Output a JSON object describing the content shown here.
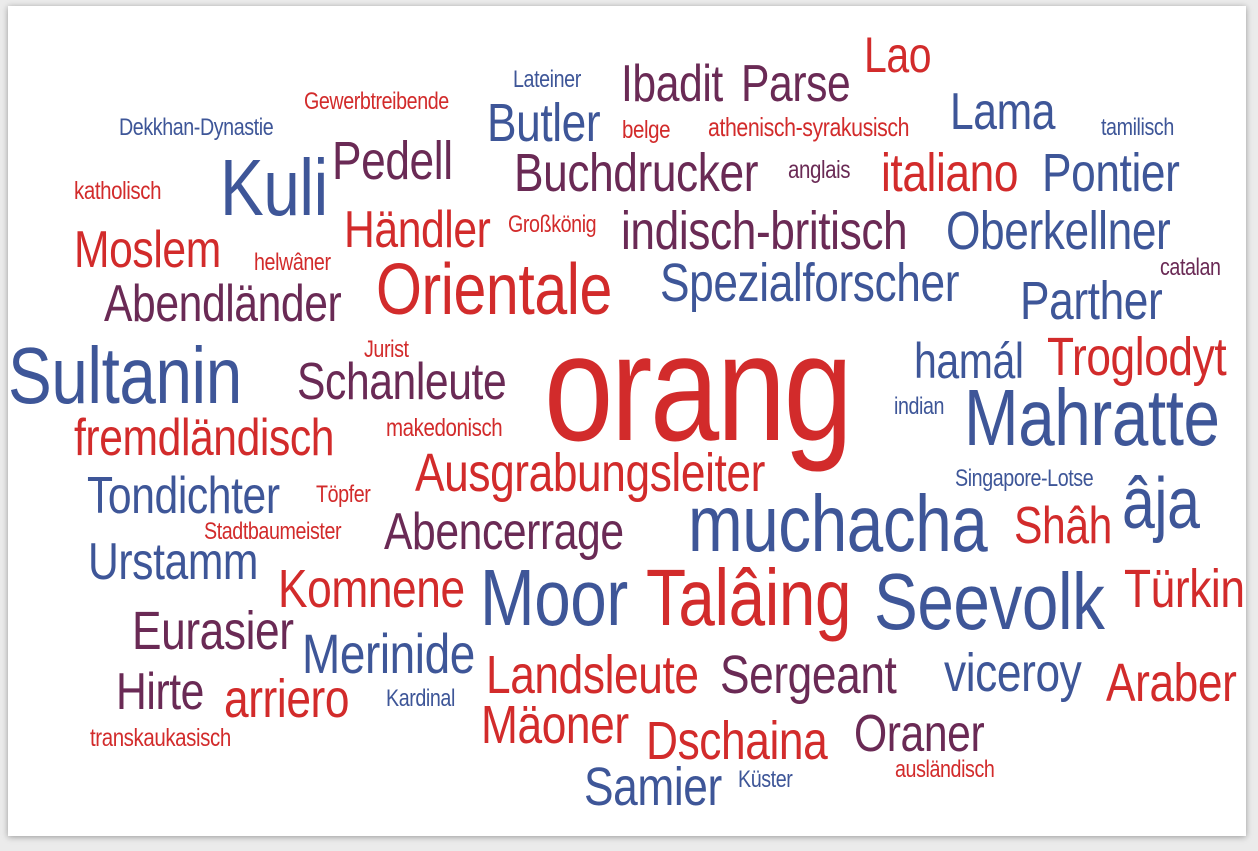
{
  "colors": {
    "red": "#d22b2b",
    "blue": "#3e5698",
    "purple": "#6a2a55",
    "background": "#ffffff"
  },
  "words": [
    {
      "id": "lao",
      "text": "Lao"
    },
    {
      "id": "lateiner",
      "text": "Lateiner"
    },
    {
      "id": "ibadit",
      "text": "Ibadit"
    },
    {
      "id": "parse",
      "text": "Parse"
    },
    {
      "id": "gewerbtreibende",
      "text": "Gewerbtreibende"
    },
    {
      "id": "lama",
      "text": "Lama"
    },
    {
      "id": "dekkhan",
      "text": "Dekkhan-Dynastie"
    },
    {
      "id": "butler",
      "text": "Butler"
    },
    {
      "id": "belge",
      "text": "belge"
    },
    {
      "id": "athenisch",
      "text": "athenisch-syrakusisch"
    },
    {
      "id": "tamilisch",
      "text": "tamilisch"
    },
    {
      "id": "pedell",
      "text": "Pedell"
    },
    {
      "id": "buchdrucker",
      "text": "Buchdrucker"
    },
    {
      "id": "anglais",
      "text": "anglais"
    },
    {
      "id": "italiano",
      "text": "italiano"
    },
    {
      "id": "pontier",
      "text": "Pontier"
    },
    {
      "id": "kuli",
      "text": "Kuli"
    },
    {
      "id": "katholisch",
      "text": "katholisch"
    },
    {
      "id": "haendler",
      "text": "Händler"
    },
    {
      "id": "grosskoenig",
      "text": "Großkönig"
    },
    {
      "id": "indisch",
      "text": "indisch-britisch"
    },
    {
      "id": "oberkellner",
      "text": "Oberkellner"
    },
    {
      "id": "moslem",
      "text": "Moslem"
    },
    {
      "id": "helwaner",
      "text": "helwâner"
    },
    {
      "id": "orientale",
      "text": "Orientale"
    },
    {
      "id": "spezialforscher",
      "text": "Spezialforscher"
    },
    {
      "id": "catalan",
      "text": "catalan"
    },
    {
      "id": "abendlaender",
      "text": "Abendländer"
    },
    {
      "id": "parther",
      "text": "Parther"
    },
    {
      "id": "sultanin",
      "text": "Sultanin"
    },
    {
      "id": "jurist",
      "text": "Jurist"
    },
    {
      "id": "schanleute",
      "text": "Schanleute"
    },
    {
      "id": "orang",
      "text": "orang"
    },
    {
      "id": "hamal",
      "text": "hamál"
    },
    {
      "id": "troglodyt",
      "text": "Troglodyt"
    },
    {
      "id": "indian",
      "text": "indian"
    },
    {
      "id": "mahratte",
      "text": "Mahratte"
    },
    {
      "id": "fremdlaendisch",
      "text": "fremdländisch"
    },
    {
      "id": "makedonisch",
      "text": "makedonisch"
    },
    {
      "id": "ausgrabungsleiter",
      "text": "Ausgrabungsleiter"
    },
    {
      "id": "singapore",
      "text": "Singapore-Lotse"
    },
    {
      "id": "tondichter",
      "text": "Tondichter"
    },
    {
      "id": "toepfer",
      "text": "Töpfer"
    },
    {
      "id": "aja",
      "text": "âja"
    },
    {
      "id": "stadtbaumeister",
      "text": "Stadtbaumeister"
    },
    {
      "id": "abencerrage",
      "text": "Abencerrage"
    },
    {
      "id": "muchacha",
      "text": "muchacha"
    },
    {
      "id": "shah",
      "text": "Shâh"
    },
    {
      "id": "urstamm",
      "text": "Urstamm"
    },
    {
      "id": "komnene",
      "text": "Komnene"
    },
    {
      "id": "moor",
      "text": "Moor"
    },
    {
      "id": "talaing",
      "text": "Talâing"
    },
    {
      "id": "seevolk",
      "text": "Seevolk"
    },
    {
      "id": "tuerkin",
      "text": "Türkin"
    },
    {
      "id": "eurasier",
      "text": "Eurasier"
    },
    {
      "id": "merinide",
      "text": "Merinide"
    },
    {
      "id": "landsleute",
      "text": "Landsleute"
    },
    {
      "id": "sergeant",
      "text": "Sergeant"
    },
    {
      "id": "viceroy",
      "text": "viceroy"
    },
    {
      "id": "araber",
      "text": "Araber"
    },
    {
      "id": "hirte",
      "text": "Hirte"
    },
    {
      "id": "arriero",
      "text": "arriero"
    },
    {
      "id": "kardinal",
      "text": "Kardinal"
    },
    {
      "id": "maeoner",
      "text": "Mäoner"
    },
    {
      "id": "oraner",
      "text": "Oraner"
    },
    {
      "id": "dschaina",
      "text": "Dschaina"
    },
    {
      "id": "transkaukasisch",
      "text": "transkaukasisch"
    },
    {
      "id": "auslaendisch",
      "text": "ausländisch"
    },
    {
      "id": "samier",
      "text": "Samier"
    },
    {
      "id": "kuester",
      "text": "Küster"
    }
  ]
}
